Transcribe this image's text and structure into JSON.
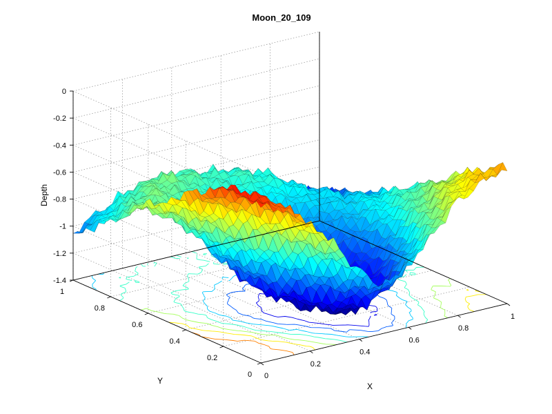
{
  "chart_data": {
    "type": "surface",
    "title": "Moon_20_109",
    "xlabel": "X",
    "ylabel": "Y",
    "zlabel": "Depth",
    "xlim": [
      0,
      1
    ],
    "ylim": [
      0,
      1
    ],
    "zlim": [
      -1.4,
      0
    ],
    "x_ticks": [
      "0",
      "0.2",
      "0.4",
      "0.6",
      "0.8",
      "1"
    ],
    "y_ticks": [
      "0",
      "0.2",
      "0.4",
      "0.6",
      "0.8",
      "1"
    ],
    "z_ticks": [
      "0",
      "-0.2",
      "-0.4",
      "-0.6",
      "-0.8",
      "-1",
      "-1.2",
      "-1.4"
    ],
    "x_tick_values": [
      0,
      0.2,
      0.4,
      0.6,
      0.8,
      1
    ],
    "y_tick_values": [
      0,
      0.2,
      0.4,
      0.6,
      0.8,
      1
    ],
    "z_tick_values": [
      0,
      -0.2,
      -0.4,
      -0.6,
      -0.8,
      -1,
      -1.2,
      -1.4
    ],
    "grid": true,
    "colormap": "jet",
    "contour_projection": true,
    "surface_grid_x": [
      0,
      0.1,
      0.2,
      0.3,
      0.4,
      0.5,
      0.6,
      0.7,
      0.8,
      0.9,
      1.0
    ],
    "surface_grid_y": [
      0,
      0.1,
      0.2,
      0.3,
      0.4,
      0.5,
      0.6,
      0.7,
      0.8,
      0.9,
      1.0
    ],
    "depth": [
      [
        -0.25,
        -0.3,
        -0.45,
        -0.65,
        -0.9,
        -1.05,
        -0.95,
        -0.75,
        -0.55,
        -0.45,
        -0.4
      ],
      [
        -0.2,
        -0.28,
        -0.5,
        -0.8,
        -1.1,
        -1.25,
        -1.15,
        -0.9,
        -0.65,
        -0.5,
        -0.45
      ],
      [
        -0.22,
        -0.35,
        -0.7,
        -1.0,
        -1.3,
        -1.38,
        -1.3,
        -1.05,
        -0.75,
        -0.6,
        -0.55
      ],
      [
        -0.3,
        -0.55,
        -0.9,
        -1.2,
        -1.35,
        -1.4,
        -1.35,
        -1.15,
        -0.85,
        -0.7,
        -0.65
      ],
      [
        -0.4,
        -0.7,
        -1.0,
        -1.25,
        -1.35,
        -1.38,
        -1.3,
        -1.1,
        -0.9,
        -0.78,
        -0.75
      ],
      [
        -0.5,
        -0.75,
        -1.0,
        -1.2,
        -1.28,
        -1.3,
        -1.22,
        -1.05,
        -0.92,
        -0.85,
        -0.85
      ],
      [
        -0.6,
        -0.75,
        -0.9,
        -1.05,
        -1.15,
        -1.15,
        -1.08,
        -0.98,
        -0.92,
        -0.92,
        -0.95
      ],
      [
        -0.7,
        -0.7,
        -0.8,
        -0.9,
        -0.98,
        -1.0,
        -0.95,
        -0.9,
        -0.92,
        -0.98,
        -1.02
      ],
      [
        -0.85,
        -0.75,
        -0.7,
        -0.78,
        -0.85,
        -0.85,
        -0.82,
        -0.85,
        -0.95,
        -1.05,
        -1.08
      ],
      [
        -0.95,
        -0.85,
        -0.75,
        -0.7,
        -0.75,
        -0.8,
        -0.8,
        -0.85,
        -1.0,
        -1.1,
        -1.12
      ],
      [
        -1.05,
        -0.95,
        -0.85,
        -0.8,
        -0.78,
        -0.82,
        -0.85,
        -0.92,
        -1.05,
        -1.15,
        -1.18
      ]
    ]
  }
}
